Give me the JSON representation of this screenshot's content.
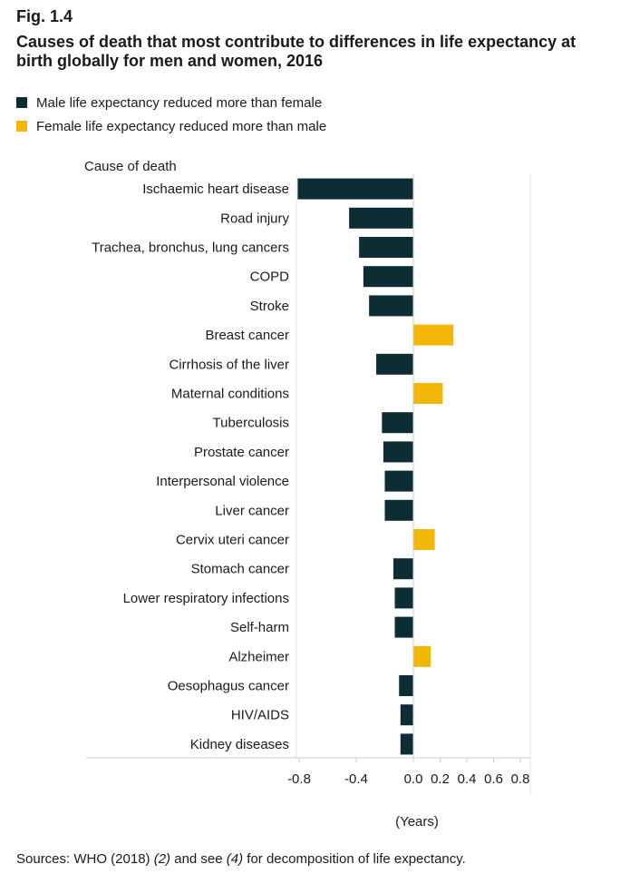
{
  "figure": {
    "label": "Fig. 1.4",
    "title": "Causes of death that most contribute to differences in life expectancy at birth globally for men and women, 2016"
  },
  "legend": [
    {
      "label": "Male life expectancy reduced more than female",
      "color": "#0c2d33"
    },
    {
      "label": "Female life expectancy reduced more than male",
      "color": "#f2b705"
    }
  ],
  "source": {
    "prefix": "Sources: WHO (2018) ",
    "ref1": "(2)",
    "middle": " and see ",
    "ref2": "(4)",
    "suffix": " for decomposition of life expectancy."
  },
  "chart_data": {
    "type": "bar",
    "orientation": "horizontal",
    "ylabel": "Cause of death",
    "xlabel": "(Years)",
    "xlim": [
      -0.9,
      0.9
    ],
    "xticks": [
      -0.8,
      -0.4,
      0.0,
      0.2,
      0.4,
      0.6,
      0.8
    ],
    "xtick_labels": [
      "-0.8",
      "-0.4",
      "0.0",
      "0.2",
      "0.4",
      "0.6",
      "0.8"
    ],
    "categories": [
      "Ischaemic heart disease",
      "Road injury",
      "Trachea, bronchus, lung cancers",
      "COPD",
      "Stroke",
      "Breast cancer",
      "Cirrhosis of the liver",
      "Maternal conditions",
      "Tuberculosis",
      "Prostate cancer",
      "Interpersonal violence",
      "Liver cancer",
      "Cervix uteri cancer",
      "Stomach cancer",
      "Lower respiratory infections",
      "Self-harm",
      "Alzheimer",
      "Oesophagus cancer",
      "HIV/AIDS",
      "Kidney diseases"
    ],
    "values": [
      -0.81,
      -0.45,
      -0.38,
      -0.35,
      -0.31,
      0.3,
      -0.26,
      0.22,
      -0.22,
      -0.21,
      -0.2,
      -0.2,
      0.16,
      -0.14,
      -0.13,
      -0.13,
      0.13,
      -0.1,
      -0.09,
      -0.09
    ],
    "colors": {
      "negative": "#0c2d33",
      "positive": "#f2b705"
    },
    "grid": false
  }
}
